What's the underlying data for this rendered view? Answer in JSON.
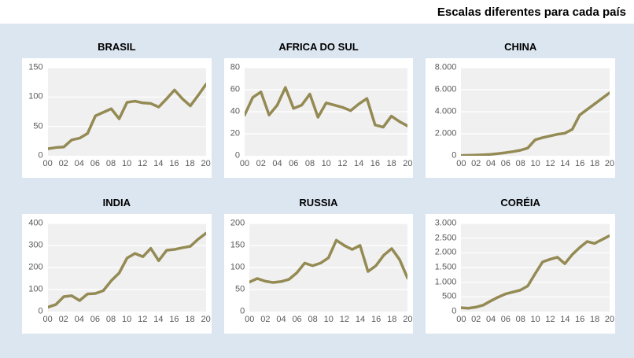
{
  "header": {
    "title": "Escalas diferentes para cada país"
  },
  "colors": {
    "page_bg": "#FFFFFF",
    "board_bg": "#DCE6F1",
    "panel_bg": "#FFFFFF",
    "plot_bg": "#F0F0F0",
    "gridline": "#FFFFFF",
    "line": "#948A54",
    "axis_text": "#595959",
    "title_text": "#000000"
  },
  "chart_data": [
    {
      "type": "line",
      "title": "BRASIL",
      "x": [
        "00",
        "01",
        "02",
        "03",
        "04",
        "05",
        "06",
        "07",
        "08",
        "09",
        "10",
        "11",
        "12",
        "13",
        "14",
        "15",
        "16",
        "17",
        "18",
        "19",
        "20"
      ],
      "values": [
        12,
        14,
        15,
        27,
        30,
        38,
        68,
        74,
        80,
        63,
        91,
        93,
        90,
        89,
        83,
        97,
        112,
        97,
        85,
        103,
        122
      ],
      "ylim": [
        0,
        150
      ],
      "yticks": [
        0,
        50,
        100,
        150
      ],
      "ytick_labels": [
        "0",
        "50",
        "100",
        "150"
      ],
      "xtick_labels": [
        "00",
        "02",
        "04",
        "06",
        "08",
        "10",
        "12",
        "14",
        "16",
        "18",
        "20"
      ],
      "grid": true,
      "legend": false
    },
    {
      "type": "line",
      "title": "AFRICA DO SUL",
      "x": [
        "00",
        "01",
        "02",
        "03",
        "04",
        "05",
        "06",
        "07",
        "08",
        "09",
        "10",
        "11",
        "12",
        "13",
        "14",
        "15",
        "16",
        "17",
        "18",
        "19",
        "20"
      ],
      "values": [
        37,
        53,
        58,
        37,
        46,
        62,
        43,
        46,
        56,
        35,
        48,
        46,
        44,
        41,
        47,
        52,
        28,
        26,
        36,
        31,
        27
      ],
      "ylim": [
        0,
        80
      ],
      "yticks": [
        0,
        20,
        40,
        60,
        80
      ],
      "ytick_labels": [
        "0",
        "20",
        "40",
        "60",
        "80"
      ],
      "xtick_labels": [
        "00",
        "02",
        "04",
        "06",
        "08",
        "10",
        "12",
        "14",
        "16",
        "18",
        "20"
      ],
      "grid": true,
      "legend": false
    },
    {
      "type": "line",
      "title": "CHINA",
      "x": [
        "00",
        "01",
        "02",
        "03",
        "04",
        "05",
        "06",
        "07",
        "08",
        "09",
        "10",
        "11",
        "12",
        "13",
        "14",
        "15",
        "16",
        "17",
        "18",
        "19",
        "20"
      ],
      "values": [
        30,
        45,
        60,
        90,
        130,
        200,
        280,
        380,
        500,
        700,
        1450,
        1650,
        1800,
        1950,
        2050,
        2400,
        3700,
        4200,
        4700,
        5200,
        5700
      ],
      "ylim": [
        0,
        8000
      ],
      "yticks": [
        0,
        2000,
        4000,
        6000,
        8000
      ],
      "ytick_labels": [
        "0",
        "2.000",
        "4.000",
        "6.000",
        "8.000"
      ],
      "xtick_labels": [
        "00",
        "02",
        "04",
        "06",
        "08",
        "10",
        "12",
        "14",
        "16",
        "18",
        "20"
      ],
      "grid": true,
      "legend": false
    },
    {
      "type": "line",
      "title": "INDIA",
      "x": [
        "00",
        "01",
        "02",
        "03",
        "04",
        "05",
        "06",
        "07",
        "08",
        "09",
        "10",
        "11",
        "12",
        "13",
        "14",
        "15",
        "16",
        "17",
        "18",
        "19",
        "20"
      ],
      "values": [
        20,
        32,
        68,
        72,
        50,
        80,
        82,
        95,
        140,
        175,
        243,
        264,
        249,
        287,
        231,
        278,
        282,
        290,
        296,
        329,
        356
      ],
      "ylim": [
        0,
        400
      ],
      "yticks": [
        0,
        100,
        200,
        300,
        400
      ],
      "ytick_labels": [
        "0",
        "100",
        "200",
        "300",
        "400"
      ],
      "xtick_labels": [
        "00",
        "02",
        "04",
        "06",
        "08",
        "10",
        "12",
        "14",
        "16",
        "18",
        "20"
      ],
      "grid": true,
      "legend": false
    },
    {
      "type": "line",
      "title": "RUSSIA",
      "x": [
        "00",
        "01",
        "02",
        "03",
        "04",
        "05",
        "06",
        "07",
        "08",
        "09",
        "10",
        "11",
        "12",
        "13",
        "14",
        "15",
        "16",
        "17",
        "18",
        "19",
        "20"
      ],
      "values": [
        67,
        75,
        69,
        66,
        68,
        73,
        88,
        110,
        104,
        110,
        122,
        162,
        150,
        141,
        150,
        91,
        104,
        128,
        143,
        118,
        76
      ],
      "ylim": [
        0,
        200
      ],
      "yticks": [
        0,
        50,
        100,
        150,
        200
      ],
      "ytick_labels": [
        "0",
        "50",
        "100",
        "150",
        "200"
      ],
      "xtick_labels": [
        "00",
        "02",
        "04",
        "06",
        "08",
        "10",
        "12",
        "14",
        "16",
        "18",
        "20"
      ],
      "grid": true,
      "legend": false
    },
    {
      "type": "line",
      "title": "CORÉIA",
      "x": [
        "00",
        "01",
        "02",
        "03",
        "04",
        "05",
        "06",
        "07",
        "08",
        "09",
        "10",
        "11",
        "12",
        "13",
        "14",
        "15",
        "16",
        "17",
        "18",
        "19",
        "20"
      ],
      "values": [
        130,
        115,
        150,
        220,
        360,
        490,
        600,
        665,
        730,
        870,
        1290,
        1690,
        1780,
        1850,
        1630,
        1940,
        2180,
        2385,
        2320,
        2450,
        2580
      ],
      "ylim": [
        0,
        3000
      ],
      "yticks": [
        0,
        500,
        1000,
        1500,
        2000,
        2500,
        3000
      ],
      "ytick_labels": [
        "0",
        "500",
        "1.000",
        "1.500",
        "2.000",
        "2.500",
        "3.000"
      ],
      "xtick_labels": [
        "00",
        "02",
        "04",
        "06",
        "08",
        "10",
        "12",
        "14",
        "16",
        "18",
        "20"
      ],
      "grid": true,
      "legend": false
    }
  ]
}
